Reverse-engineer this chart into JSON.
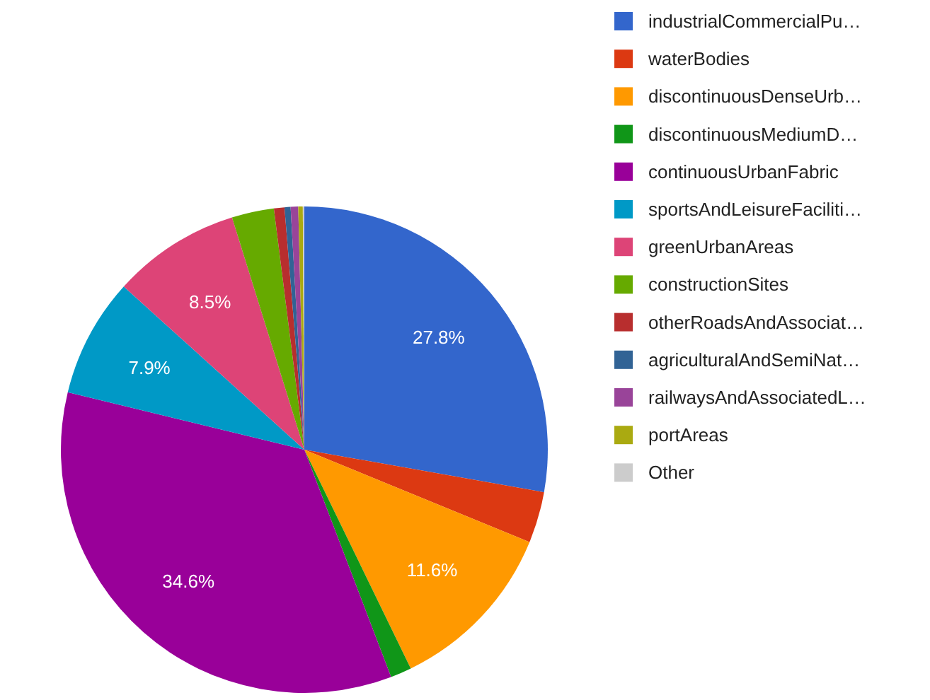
{
  "chart_data": {
    "type": "pie",
    "categories": [
      "industrialCommercialPu…",
      "waterBodies",
      "discontinuousDenseUrb…",
      "discontinuousMediumD…",
      "continuousUrbanFabric",
      "sportsAndLeisureFaciliti…",
      "greenUrbanAreas",
      "constructionSites",
      "otherRoadsAndAssociat…",
      "agriculturalAndSemiNat…",
      "railwaysAndAssociatedL…",
      "portAreas",
      "Other"
    ],
    "values": [
      27.8,
      3.4,
      11.6,
      1.4,
      34.6,
      7.9,
      8.5,
      2.8,
      0.7,
      0.4,
      0.5,
      0.3,
      0.1
    ],
    "colors": [
      "#3366cc",
      "#dc3912",
      "#ff9900",
      "#109618",
      "#990099",
      "#0099c6",
      "#dd4477",
      "#66aa00",
      "#b82e2e",
      "#316395",
      "#994499",
      "#aaaa11",
      "#cccccc"
    ],
    "value_labels": [
      "27.8%",
      null,
      "11.6%",
      null,
      "34.6%",
      "7.9%",
      "8.5%",
      null,
      null,
      null,
      null,
      null,
      null
    ],
    "legend": "top right"
  }
}
